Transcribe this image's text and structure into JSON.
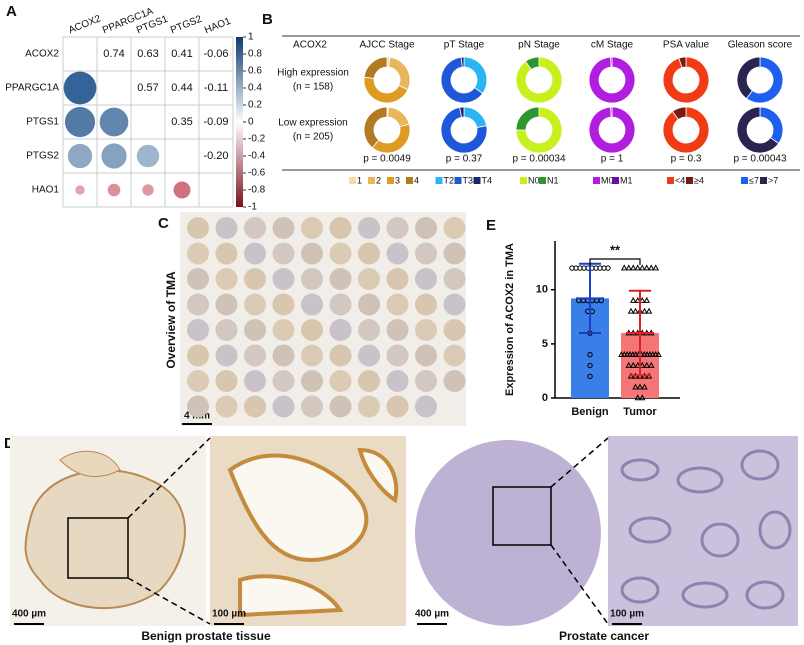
{
  "panel_labels": [
    "A",
    "B",
    "C",
    "D",
    "E"
  ],
  "correlation": {
    "genes": [
      "ACOX2",
      "PPARGC1A",
      "PTGS1",
      "PTGS2",
      "HAO1"
    ],
    "values": [
      [
        0.74,
        0.63,
        0.41,
        -0.06
      ],
      [
        0.57,
        0.44,
        -0.11
      ],
      [
        0.35,
        -0.09
      ],
      [
        -0.2
      ]
    ],
    "value_labels": [
      [
        "0.74",
        "0.63",
        "0.41",
        "-0.06"
      ],
      [
        "0.57",
        "0.44",
        "-0.11"
      ],
      [
        "0.35",
        "-0.09"
      ],
      [
        "-0.20"
      ]
    ],
    "colorbar_ticks": [
      1,
      0.8,
      0.6,
      0.4,
      0.2,
      0,
      -0.2,
      -0.4,
      -0.6,
      -0.8,
      -1
    ],
    "positive_color": "#1a4f8a",
    "negative_color": "#b2182b"
  },
  "donuts": {
    "header": "ACOX2",
    "groups": [
      [
        "High expression",
        "(n = 158)"
      ],
      [
        "Low expression",
        "(n = 205)"
      ]
    ],
    "variables": [
      {
        "name": "AJCC Stage",
        "categories": [
          "1",
          "2",
          "3",
          "4"
        ],
        "colors": [
          "#f3dca6",
          "#e8b75c",
          "#df9a22",
          "#b27a22"
        ],
        "values": [
          [
            2,
            30,
            45,
            23
          ],
          [
            1,
            20,
            40,
            39
          ]
        ],
        "p": "p = 0.0049",
        "significant": true
      },
      {
        "name": "pT Stage",
        "categories": [
          "T2",
          "T3",
          "T4"
        ],
        "colors": [
          "#2bb4f2",
          "#1e58d8",
          "#1a2470"
        ],
        "values": [
          [
            35,
            63,
            2
          ],
          [
            22,
            75,
            3
          ]
        ],
        "p": "p = 0.37",
        "significant": false
      },
      {
        "name": "pN Stage",
        "categories": [
          "N0",
          "N1"
        ],
        "colors": [
          "#c8f01c",
          "#2e962e"
        ],
        "values": [
          [
            90,
            10
          ],
          [
            75,
            25
          ]
        ],
        "p": "p = 0.00034",
        "significant": true
      },
      {
        "name": "cM Stage",
        "categories": [
          "M0",
          "M1"
        ],
        "colors": [
          "#b21ee0",
          "#6a0dad"
        ],
        "values": [
          [
            99,
            1
          ],
          [
            99,
            1
          ]
        ],
        "p": "p = 1",
        "significant": false
      },
      {
        "name": "PSA value",
        "categories": [
          "<4",
          "≥4"
        ],
        "colors": [
          "#f03c14",
          "#7a1a14"
        ],
        "values": [
          [
            95,
            5
          ],
          [
            90,
            10
          ]
        ],
        "p": "p = 0.3",
        "significant": false
      },
      {
        "name": "Gleason score",
        "categories": [
          "≤7",
          ">7"
        ],
        "colors": [
          "#1f5ff0",
          "#2a2550"
        ],
        "values": [
          [
            60,
            40
          ],
          [
            35,
            65
          ]
        ],
        "p": "p = 0.00043",
        "significant": true
      }
    ],
    "significant_color": "#e02020"
  },
  "tma": {
    "title": "Overview of TMA",
    "scale": "4 mm"
  },
  "histology": {
    "scales": [
      "400 µm",
      "100 µm",
      "400 µm",
      "100 µm"
    ],
    "captions": [
      "Benign prostate tissue",
      "Prostate cancer"
    ]
  },
  "bar_chart": {
    "type": "bar",
    "ylabel": "Expression of ACOX2 in TMA",
    "categories": [
      "Benign",
      "Tumor"
    ],
    "values": [
      9.2,
      6.0
    ],
    "errors": [
      3.2,
      3.9
    ],
    "colors": [
      "#3a7ee8",
      "#f47676"
    ],
    "error_colors": [
      "#1a3fc0",
      "#e02020"
    ],
    "points": [
      [
        12,
        12,
        12,
        12,
        12,
        12,
        12,
        12,
        12,
        12,
        9,
        9,
        9,
        9,
        9,
        9,
        8,
        8,
        6,
        4,
        3,
        2
      ],
      [
        12,
        12,
        12,
        12,
        12,
        12,
        12,
        12,
        9,
        9,
        9,
        9,
        8,
        8,
        8,
        8,
        8,
        6,
        6,
        6,
        6,
        6,
        6,
        4,
        4,
        4,
        4,
        4,
        4,
        4,
        4,
        4,
        4,
        4,
        4,
        4,
        4,
        3,
        3,
        3,
        3,
        3,
        3,
        2,
        2,
        2,
        2,
        2,
        1,
        1,
        1,
        0,
        0
      ]
    ],
    "ylim": [
      0,
      14.5
    ],
    "yticks": [
      0,
      5,
      10
    ],
    "annotation": "**",
    "annotation_color": "#e02020"
  }
}
